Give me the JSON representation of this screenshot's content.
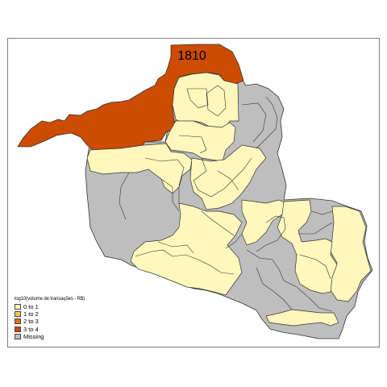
{
  "map": {
    "feature_label": "1810",
    "legend": {
      "title": "log10(volume de transações - R$)",
      "items": [
        {
          "label": "0 to 1",
          "color": "#FFF7BC"
        },
        {
          "label": "1 to 2",
          "color": "#FEC44F"
        },
        {
          "label": "2 to 3",
          "color": "#EC7014"
        },
        {
          "label": "3 to 4",
          "color": "#CC4C02"
        },
        {
          "label": "Missing",
          "color": "#BEBEBE"
        }
      ]
    },
    "colors": {
      "class_0_to_1": "#FFF7BC",
      "class_3_to_4": "#CC4C02",
      "missing": "#BEBEBE",
      "boundary": "#333333"
    }
  }
}
